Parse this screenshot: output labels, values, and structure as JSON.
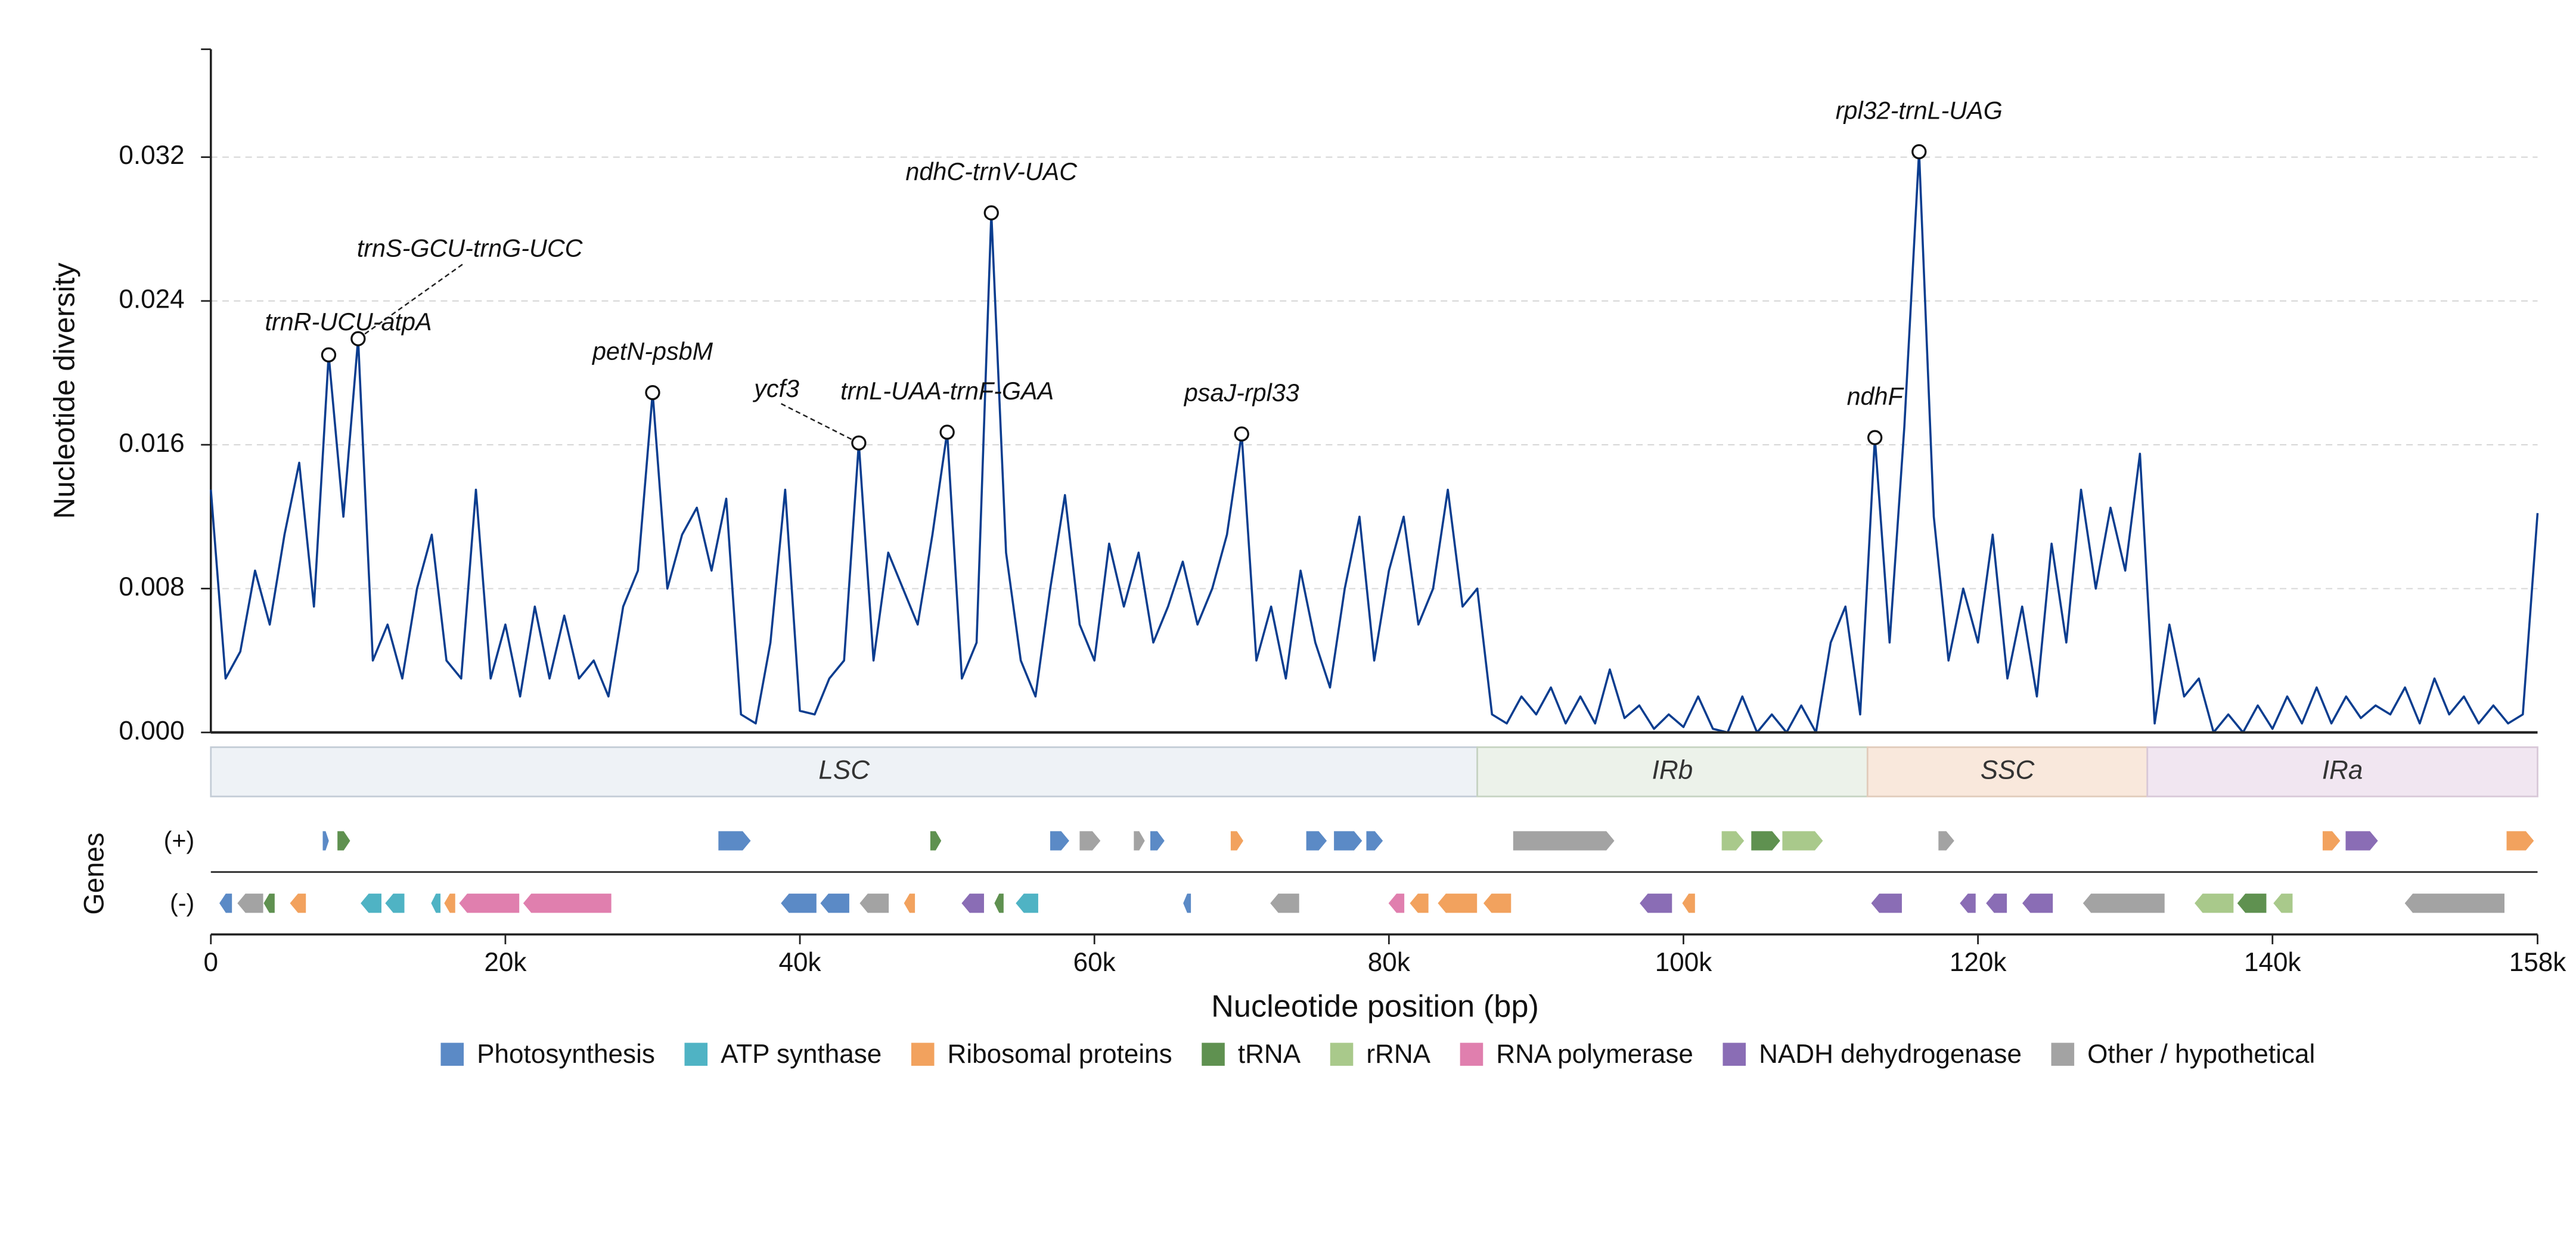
{
  "chart_data": {
    "type": "line",
    "y_label": "Nucleotide diversity",
    "x_label": "Nucleotide position (bp)",
    "track_title": "Genes",
    "tracks": [
      "(+)",
      "(-)"
    ],
    "color": "#0b3d8f",
    "grid": true,
    "xlim": [
      0,
      158000
    ],
    "ylim": [
      0,
      0.038
    ],
    "xticks": [
      0,
      {
        "value": 20000,
        "label": "20k"
      },
      {
        "value": 40000,
        "label": "40k"
      },
      {
        "value": 60000,
        "label": "60k"
      },
      {
        "value": 80000,
        "label": "80k"
      },
      {
        "value": 100000,
        "label": "100k"
      },
      {
        "value": 120000,
        "label": "120k"
      },
      {
        "value": 140000,
        "label": "140k"
      },
      {
        "value": 158000,
        "label": "158k"
      }
    ],
    "yticks": [
      {
        "value": 0,
        "label": "0.000"
      },
      0.008,
      0.016,
      0.024,
      0.032
    ],
    "x": [
      0,
      1000,
      2000,
      3000,
      4000,
      5000,
      6000,
      7000,
      8000,
      9000,
      10000,
      11000,
      12000,
      13000,
      14000,
      15000,
      16000,
      17000,
      18000,
      19000,
      20000,
      21000,
      22000,
      23000,
      24000,
      25000,
      26000,
      27000,
      28000,
      29000,
      30000,
      31000,
      32000,
      33000,
      34000,
      35000,
      36000,
      37000,
      38000,
      39000,
      40000,
      41000,
      42000,
      43000,
      44000,
      45000,
      46000,
      47000,
      48000,
      49000,
      50000,
      51000,
      52000,
      53000,
      54000,
      55000,
      56000,
      57000,
      58000,
      59000,
      60000,
      61000,
      62000,
      63000,
      64000,
      65000,
      66000,
      67000,
      68000,
      69000,
      70000,
      71000,
      72000,
      73000,
      74000,
      75000,
      76000,
      77000,
      78000,
      79000,
      80000,
      81000,
      82000,
      83000,
      84000,
      85000,
      86000,
      87000,
      88000,
      89000,
      90000,
      91000,
      92000,
      93000,
      94000,
      95000,
      96000,
      97000,
      98000,
      99000,
      100000,
      101000,
      102000,
      103000,
      104000,
      105000,
      106000,
      107000,
      108000,
      109000,
      110000,
      111000,
      112000,
      113000,
      114000,
      115000,
      116000,
      117000,
      118000,
      119000,
      120000,
      121000,
      122000,
      123000,
      124000,
      125000,
      126000,
      127000,
      128000,
      129000,
      130000,
      131000,
      132000,
      133000,
      134000,
      135000,
      136000,
      137000,
      138000,
      139000,
      140000,
      141000,
      142000,
      143000,
      144000,
      145000,
      146000,
      147000,
      148000,
      149000,
      150000,
      151000,
      152000,
      153000,
      154000,
      155000,
      156000,
      157000,
      158000
    ],
    "values": [
      0.0135,
      0.003,
      0.0045,
      0.009,
      0.006,
      0.011,
      0.015,
      0.007,
      0.021,
      0.012,
      0.0219,
      0.004,
      0.006,
      0.003,
      0.008,
      0.011,
      0.004,
      0.003,
      0.0135,
      0.003,
      0.006,
      0.002,
      0.007,
      0.003,
      0.0065,
      0.003,
      0.004,
      0.002,
      0.007,
      0.009,
      0.0189,
      0.008,
      0.011,
      0.0125,
      0.009,
      0.013,
      0.001,
      0.0005,
      0.005,
      0.0135,
      0.0012,
      0.001,
      0.003,
      0.004,
      0.0161,
      0.004,
      0.01,
      0.008,
      0.006,
      0.011,
      0.0167,
      0.003,
      0.005,
      0.0289,
      0.01,
      0.004,
      0.002,
      0.008,
      0.0132,
      0.006,
      0.004,
      0.0105,
      0.007,
      0.01,
      0.005,
      0.007,
      0.0095,
      0.006,
      0.008,
      0.011,
      0.0166,
      0.004,
      0.007,
      0.003,
      0.009,
      0.005,
      0.0025,
      0.008,
      0.012,
      0.004,
      0.009,
      0.012,
      0.006,
      0.008,
      0.0135,
      0.007,
      0.008,
      0.001,
      0.0005,
      0.002,
      0.001,
      0.0025,
      0.0005,
      0.002,
      0.0005,
      0.0035,
      0.0008,
      0.0015,
      0.0002,
      0.001,
      0.0003,
      0.002,
      0.0002,
      0,
      0.002,
      0,
      0.001,
      0,
      0.0015,
      0,
      0.005,
      0.007,
      0.001,
      0.0164,
      0.005,
      0.017,
      0.0323,
      0.012,
      0.004,
      0.008,
      0.005,
      0.011,
      0.003,
      0.007,
      0.002,
      0.0105,
      0.005,
      0.0135,
      0.008,
      0.0125,
      0.009,
      0.0155,
      0.0005,
      0.006,
      0.002,
      0.003,
      0,
      0.001,
      0,
      0.0015,
      0.0002,
      0.002,
      0.0005,
      0.0025,
      0.0005,
      0.002,
      0.0008,
      0.0015,
      0.001,
      0.0025,
      0.0005,
      0.003,
      0.001,
      0.002,
      0.0005,
      0.0015,
      0.0005,
      0.001,
      0.0122
    ],
    "annotations": [
      {
        "label": "trnR-UCU-atpA",
        "x": 8000,
        "y": 0.021
      },
      {
        "label": "trnS-GCU-trnG-UCC",
        "x": 10000,
        "y": 0.0219
      },
      {
        "label": "petN-psbM",
        "x": 30000,
        "y": 0.0189
      },
      {
        "label": "ycf3",
        "x": 44000,
        "y": 0.0161
      },
      {
        "label": "trnL-UAA-trnF-GAA",
        "x": 50000,
        "y": 0.0167
      },
      {
        "label": "ndhC-trnV-UAC",
        "x": 53000,
        "y": 0.0289
      },
      {
        "label": "psaJ-rpl33",
        "x": 70000,
        "y": 0.0166
      },
      {
        "label": "ndhF",
        "x": 113000,
        "y": 0.0164
      },
      {
        "label": "rpl32-trnL-UAG",
        "x": 116000,
        "y": 0.0323
      }
    ],
    "regions": [
      {
        "name": "LSC",
        "start": 0,
        "end": 86000,
        "color": "#eef2f6",
        "stroke": "#c3ccd6"
      },
      {
        "name": "IRb",
        "start": 86000,
        "end": 112500,
        "color": "#ecf2ea",
        "stroke": "#c6d3c2"
      },
      {
        "name": "SSC",
        "start": 112500,
        "end": 131500,
        "color": "#f9e8dc",
        "stroke": "#e1cbbb"
      },
      {
        "name": "IRa",
        "start": 131500,
        "end": 158000,
        "color": "#f1e6f1",
        "stroke": "#d8c8d8"
      }
    ],
    "groups": [
      {
        "name": "Photosynthesis",
        "color": "#5b8ac6"
      },
      {
        "name": "ATP synthase",
        "color": "#4fb3c4"
      },
      {
        "name": "Ribosomal proteins",
        "color": "#f2a25e"
      },
      {
        "name": "tRNA",
        "color": "#5f9150"
      },
      {
        "name": "rRNA",
        "color": "#a9c98b"
      },
      {
        "name": "RNA polymerase",
        "color": "#e07fae"
      },
      {
        "name": "NADH dehydrogenase",
        "color": "#8a6db5"
      },
      {
        "name": "Other / hypothetical",
        "color": "#a3a3a3"
      }
    ],
    "genes": [
      {
        "start": 7580,
        "end": 8030,
        "track": 0,
        "group": 0
      },
      {
        "start": 8580,
        "end": 9480,
        "track": 0,
        "group": 3
      },
      {
        "start": 34450,
        "end": 36680,
        "track": 0,
        "group": 0
      },
      {
        "start": 48840,
        "end": 49620,
        "track": 0,
        "group": 3
      },
      {
        "start": 56980,
        "end": 58310,
        "track": 0,
        "group": 0
      },
      {
        "start": 58980,
        "end": 60430,
        "track": 0,
        "group": 7
      },
      {
        "start": 62660,
        "end": 63440,
        "track": 0,
        "group": 7
      },
      {
        "start": 63780,
        "end": 64780,
        "track": 0,
        "group": 0
      },
      {
        "start": 69240,
        "end": 70130,
        "track": 0,
        "group": 2
      },
      {
        "start": 74370,
        "end": 75800,
        "track": 0,
        "group": 0
      },
      {
        "start": 76250,
        "end": 78200,
        "track": 0,
        "group": 0
      },
      {
        "start": 78450,
        "end": 79610,
        "track": 0,
        "group": 0
      },
      {
        "start": 88420,
        "end": 95330,
        "track": 0,
        "group": 7
      },
      {
        "start": 102580,
        "end": 104140,
        "track": 0,
        "group": 4
      },
      {
        "start": 104590,
        "end": 106590,
        "track": 0,
        "group": 3
      },
      {
        "start": 106700,
        "end": 109490,
        "track": 0,
        "group": 4
      },
      {
        "start": 117300,
        "end": 118410,
        "track": 0,
        "group": 7
      },
      {
        "start": 143390,
        "end": 144620,
        "track": 0,
        "group": 2
      },
      {
        "start": 144950,
        "end": 147180,
        "track": 0,
        "group": 6
      },
      {
        "start": 155880,
        "end": 157770,
        "track": 0,
        "group": 2
      },
      {
        "start": 560,
        "end": 1450,
        "track": 1,
        "group": 0
      },
      {
        "start": 1780,
        "end": 3570,
        "track": 1,
        "group": 7
      },
      {
        "start": 3570,
        "end": 4350,
        "track": 1,
        "group": 3
      },
      {
        "start": 5350,
        "end": 6470,
        "track": 1,
        "group": 2
      },
      {
        "start": 10150,
        "end": 11600,
        "track": 1,
        "group": 1
      },
      {
        "start": 11820,
        "end": 13160,
        "track": 1,
        "group": 1
      },
      {
        "start": 14940,
        "end": 15610,
        "track": 1,
        "group": 1
      },
      {
        "start": 15830,
        "end": 16610,
        "track": 1,
        "group": 2
      },
      {
        "start": 16840,
        "end": 20960,
        "track": 1,
        "group": 5
      },
      {
        "start": 21190,
        "end": 27210,
        "track": 1,
        "group": 5
      },
      {
        "start": 38690,
        "end": 41140,
        "track": 1,
        "group": 0
      },
      {
        "start": 41370,
        "end": 43370,
        "track": 1,
        "group": 0
      },
      {
        "start": 44040,
        "end": 46050,
        "track": 1,
        "group": 7
      },
      {
        "start": 47050,
        "end": 47830,
        "track": 1,
        "group": 2
      },
      {
        "start": 50960,
        "end": 52520,
        "track": 1,
        "group": 6
      },
      {
        "start": 53190,
        "end": 53850,
        "track": 1,
        "group": 3
      },
      {
        "start": 54640,
        "end": 56200,
        "track": 1,
        "group": 1
      },
      {
        "start": 66010,
        "end": 66570,
        "track": 1,
        "group": 0
      },
      {
        "start": 71920,
        "end": 73920,
        "track": 1,
        "group": 7
      },
      {
        "start": 79950,
        "end": 81060,
        "track": 1,
        "group": 5
      },
      {
        "start": 81400,
        "end": 82700,
        "track": 1,
        "group": 2
      },
      {
        "start": 83300,
        "end": 86000,
        "track": 1,
        "group": 2
      },
      {
        "start": 86400,
        "end": 88310,
        "track": 1,
        "group": 2
      },
      {
        "start": 97010,
        "end": 99240,
        "track": 1,
        "group": 6
      },
      {
        "start": 99900,
        "end": 100800,
        "track": 1,
        "group": 2
      },
      {
        "start": 112730,
        "end": 114850,
        "track": 1,
        "group": 6
      },
      {
        "start": 118750,
        "end": 119860,
        "track": 1,
        "group": 6
      },
      {
        "start": 120530,
        "end": 121980,
        "track": 1,
        "group": 6
      },
      {
        "start": 122990,
        "end": 125100,
        "track": 1,
        "group": 6
      },
      {
        "start": 127110,
        "end": 132690,
        "track": 1,
        "group": 7
      },
      {
        "start": 134690,
        "end": 137370,
        "track": 1,
        "group": 4
      },
      {
        "start": 137590,
        "end": 139600,
        "track": 1,
        "group": 3
      },
      {
        "start": 140040,
        "end": 141380,
        "track": 1,
        "group": 4
      },
      {
        "start": 148960,
        "end": 155770,
        "track": 1,
        "group": 7
      }
    ]
  }
}
